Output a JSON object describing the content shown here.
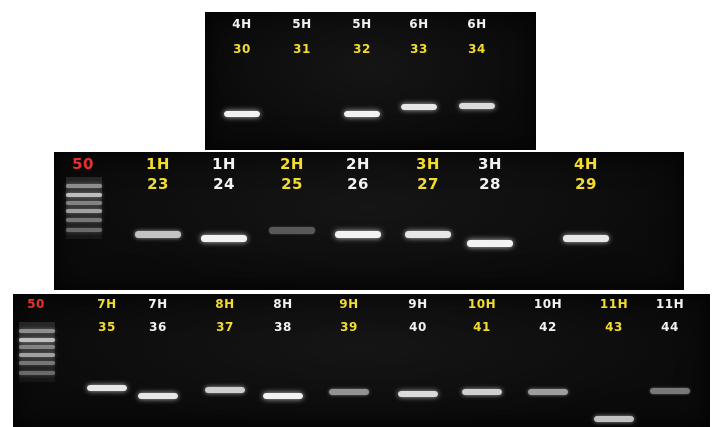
{
  "colors": {
    "gel_background": "#0b0b0b",
    "label_yellow": "#f2dc2e",
    "label_white": "#f2f2f2",
    "marker_red": "#e83030",
    "band_bright": "#ffffff"
  },
  "panels": [
    {
      "id": "gel-top",
      "lanes": [
        {
          "top": "4H",
          "bottom": "30",
          "top_color": "white",
          "bottom_color": "yellow",
          "band": {
            "pos": 0.74,
            "intensity": 0.95
          }
        },
        {
          "top": "5H",
          "bottom": "31",
          "top_color": "white",
          "bottom_color": "yellow",
          "band": null
        },
        {
          "top": "5H",
          "bottom": "32",
          "top_color": "white",
          "bottom_color": "yellow",
          "band": {
            "pos": 0.74,
            "intensity": 0.95
          }
        },
        {
          "top": "6H",
          "bottom": "33",
          "top_color": "white",
          "bottom_color": "yellow",
          "band": {
            "pos": 0.69,
            "intensity": 0.9
          }
        },
        {
          "top": "6H",
          "bottom": "34",
          "top_color": "white",
          "bottom_color": "yellow",
          "band": {
            "pos": 0.68,
            "intensity": 0.85
          }
        }
      ]
    },
    {
      "id": "gel-mid",
      "marker": "50",
      "lanes": [
        {
          "top": "1H",
          "bottom": "23",
          "top_color": "yellow",
          "bottom_color": "yellow",
          "band": {
            "pos": 0.6,
            "intensity": 0.75
          }
        },
        {
          "top": "1H",
          "bottom": "24",
          "top_color": "white",
          "bottom_color": "white",
          "band": {
            "pos": 0.63,
            "intensity": 0.95
          }
        },
        {
          "top": "2H",
          "bottom": "25",
          "top_color": "yellow",
          "bottom_color": "yellow",
          "band": {
            "pos": 0.57,
            "intensity": 0.3
          }
        },
        {
          "top": "2H",
          "bottom": "26",
          "top_color": "white",
          "bottom_color": "white",
          "band": {
            "pos": 0.6,
            "intensity": 0.95
          }
        },
        {
          "top": "3H",
          "bottom": "27",
          "top_color": "yellow",
          "bottom_color": "yellow",
          "band": {
            "pos": 0.6,
            "intensity": 0.9
          }
        },
        {
          "top": "3H",
          "bottom": "28",
          "top_color": "white",
          "bottom_color": "white",
          "band": {
            "pos": 0.66,
            "intensity": 0.95
          }
        },
        {
          "top": "4H",
          "bottom": "29",
          "top_color": "yellow",
          "bottom_color": "yellow",
          "band": {
            "pos": 0.63,
            "intensity": 0.9
          }
        }
      ]
    },
    {
      "id": "gel-bot",
      "marker": "50",
      "lanes": [
        {
          "top": "7H",
          "bottom": "35",
          "top_color": "yellow",
          "bottom_color": "yellow",
          "band": {
            "pos": 0.71,
            "intensity": 0.9
          }
        },
        {
          "top": "7H",
          "bottom": "36",
          "top_color": "white",
          "bottom_color": "white",
          "band": {
            "pos": 0.77,
            "intensity": 0.9
          }
        },
        {
          "top": "8H",
          "bottom": "37",
          "top_color": "yellow",
          "bottom_color": "yellow",
          "band": {
            "pos": 0.72,
            "intensity": 0.8
          }
        },
        {
          "top": "8H",
          "bottom": "38",
          "top_color": "white",
          "bottom_color": "white",
          "band": {
            "pos": 0.77,
            "intensity": 0.95
          }
        },
        {
          "top": "9H",
          "bottom": "39",
          "top_color": "yellow",
          "bottom_color": "yellow",
          "band": {
            "pos": 0.74,
            "intensity": 0.55
          }
        },
        {
          "top": "9H",
          "bottom": "40",
          "top_color": "white",
          "bottom_color": "white",
          "band": {
            "pos": 0.75,
            "intensity": 0.85
          }
        },
        {
          "top": "10H",
          "bottom": "41",
          "top_color": "yellow",
          "bottom_color": "yellow",
          "band": {
            "pos": 0.74,
            "intensity": 0.8
          }
        },
        {
          "top": "10H",
          "bottom": "42",
          "top_color": "white",
          "bottom_color": "white",
          "band": {
            "pos": 0.74,
            "intensity": 0.6
          }
        },
        {
          "top": "11H",
          "bottom": "43",
          "top_color": "yellow",
          "bottom_color": "yellow",
          "band": {
            "pos": 0.94,
            "intensity": 0.75
          }
        },
        {
          "top": "11H",
          "bottom": "44",
          "top_color": "white",
          "bottom_color": "white",
          "band": {
            "pos": 0.73,
            "intensity": 0.45
          }
        }
      ]
    }
  ]
}
